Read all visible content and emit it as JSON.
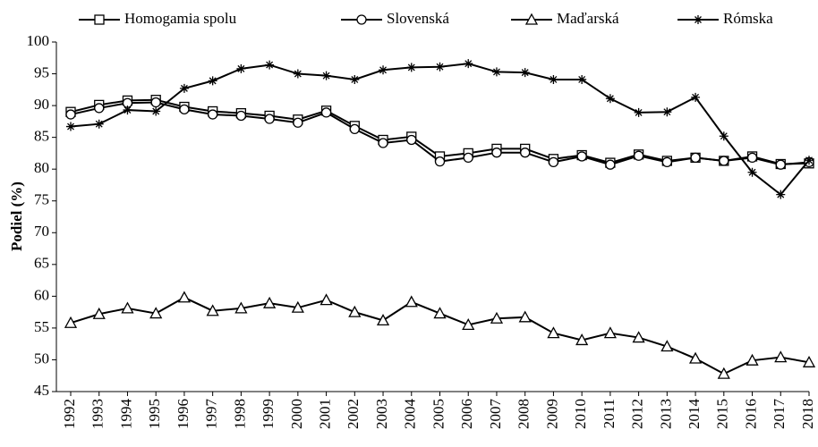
{
  "chart_data": {
    "type": "line",
    "y_label": "Podiel (%)",
    "categories": [
      "1992",
      "1993",
      "1994",
      "1995",
      "1996",
      "1997",
      "1998",
      "1999",
      "2000",
      "2001",
      "2002",
      "2003",
      "2004",
      "2005",
      "2006",
      "2007",
      "2008",
      "2009",
      "2010",
      "2011",
      "2012",
      "2013",
      "2014",
      "2015",
      "2016",
      "2017",
      "2018"
    ],
    "series": [
      {
        "name": "Homogamia spolu",
        "color": "#000000",
        "marker": "square",
        "values": [
          89,
          90.1,
          90.8,
          90.9,
          89.8,
          89.1,
          88.8,
          88.4,
          87.8,
          89.2,
          86.8,
          84.6,
          85.1,
          82,
          82.5,
          83.2,
          83.2,
          81.6,
          82.2,
          81,
          82.3,
          81.3,
          81.8,
          81.3,
          82,
          80.8,
          80.9
        ]
      },
      {
        "name": "Slovenská",
        "color": "#000000",
        "marker": "circle",
        "values": [
          88.6,
          89.6,
          90.4,
          90.5,
          89.4,
          88.6,
          88.4,
          87.9,
          87.3,
          88.9,
          86.3,
          84.1,
          84.6,
          81.2,
          81.8,
          82.6,
          82.6,
          81.1,
          82,
          80.7,
          82.1,
          81.1,
          81.8,
          81.3,
          81.8,
          80.7,
          81.1
        ]
      },
      {
        "name": "Maďarská",
        "color": "#000000",
        "marker": "triangle",
        "values": [
          55.8,
          57.2,
          58.1,
          57.3,
          59.8,
          57.7,
          58.1,
          58.9,
          58.2,
          59.4,
          57.5,
          56.2,
          59.1,
          57.3,
          55.5,
          56.5,
          56.7,
          54.2,
          53.1,
          54.2,
          53.5,
          52.1,
          50.2,
          47.8,
          49.9,
          50.4,
          49.6
        ]
      },
      {
        "name": "Rómska",
        "color": "#000000",
        "marker": "star",
        "values": [
          86.7,
          87.1,
          89.3,
          89.1,
          92.7,
          93.9,
          95.8,
          96.4,
          95,
          94.7,
          94.1,
          95.6,
          96,
          96.1,
          96.6,
          95.3,
          95.2,
          94.1,
          94.1,
          91.1,
          88.9,
          89,
          91.3,
          85.2,
          79.5,
          76,
          81.4
        ]
      }
    ],
    "ylim": [
      45,
      100
    ],
    "yticks": [
      45,
      50,
      55,
      60,
      65,
      70,
      75,
      80,
      85,
      90,
      95,
      100
    ],
    "grid": false,
    "legend": "top"
  }
}
